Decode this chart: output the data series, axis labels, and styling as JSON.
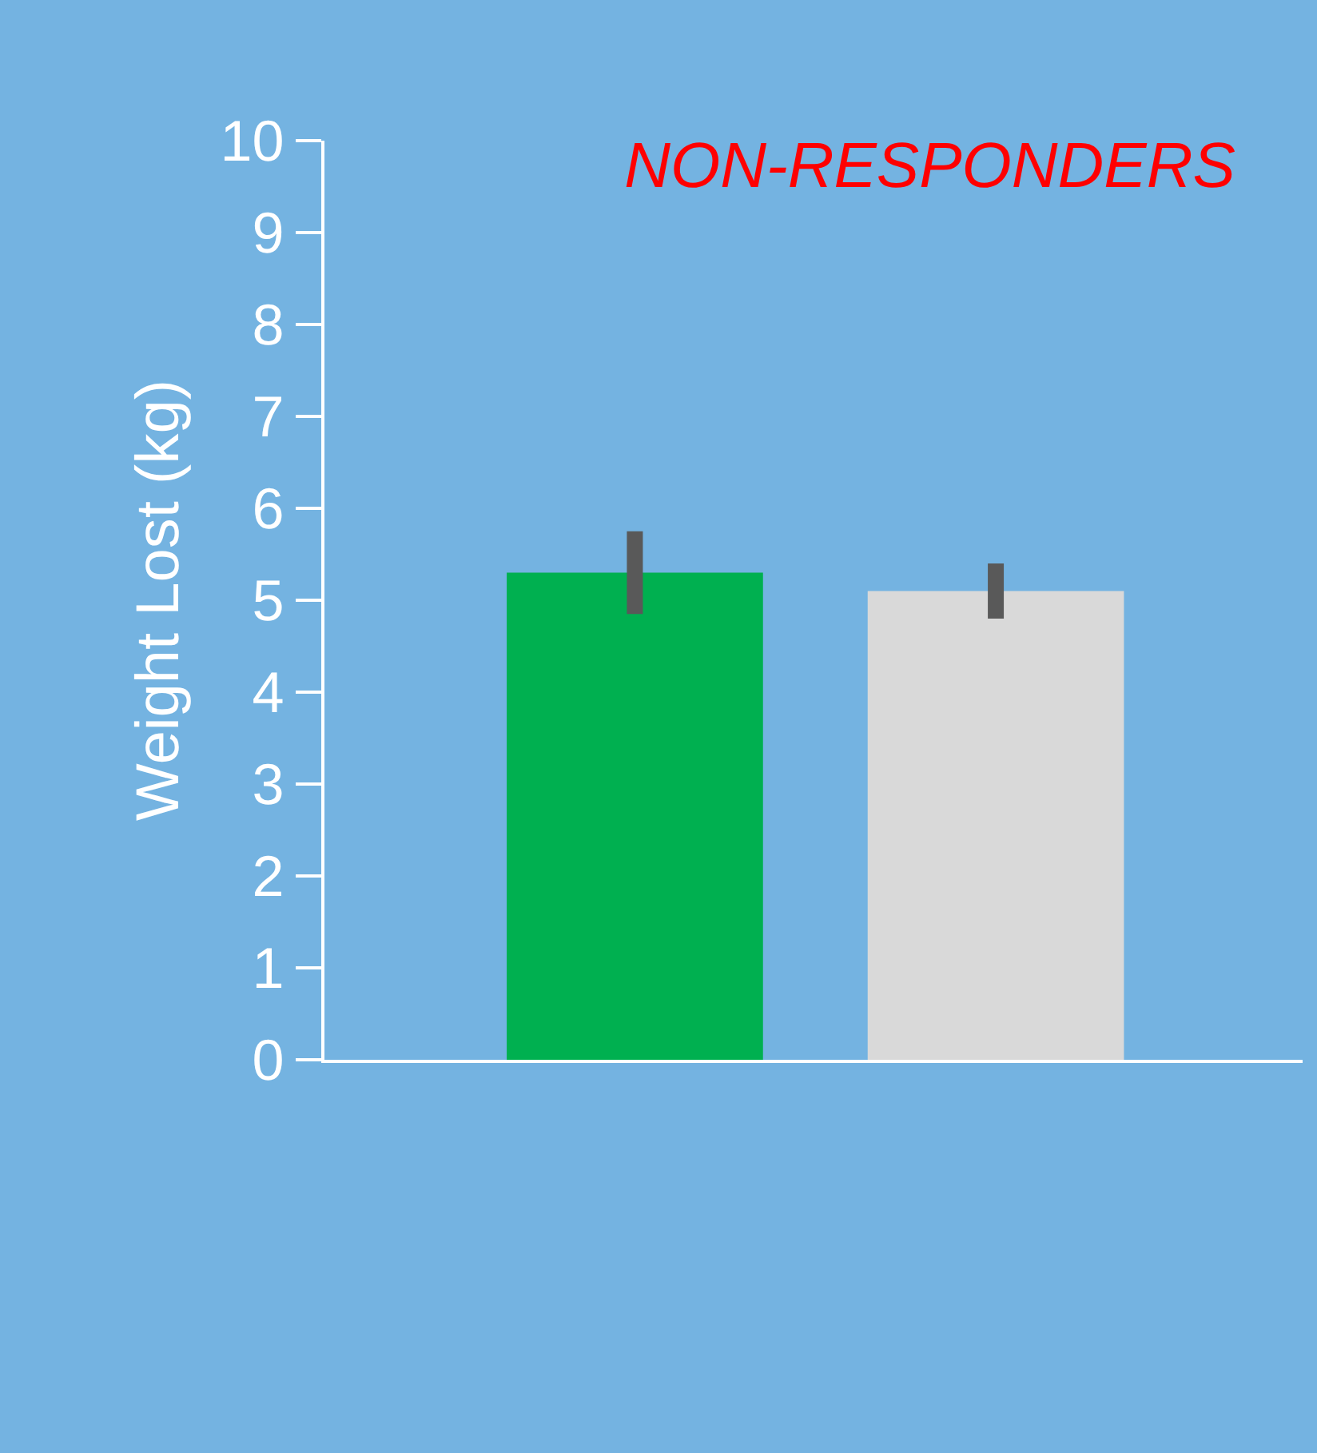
{
  "chart_data": {
    "type": "bar",
    "title": "NON-RESPONDERS",
    "ylabel": "Weight Lost (kg)",
    "categories": [
      null,
      null
    ],
    "values": [
      5.3,
      5.1
    ],
    "colors": [
      "#00b050",
      "#d9d9d9"
    ],
    "errors": [
      [
        4.85,
        5.75
      ],
      [
        4.8,
        5.4
      ]
    ],
    "ylim": [
      0,
      10
    ],
    "yticks": [
      0,
      1,
      2,
      3,
      4,
      5,
      6,
      7,
      8,
      9,
      10
    ],
    "grid": false,
    "tick_labels": "y"
  }
}
